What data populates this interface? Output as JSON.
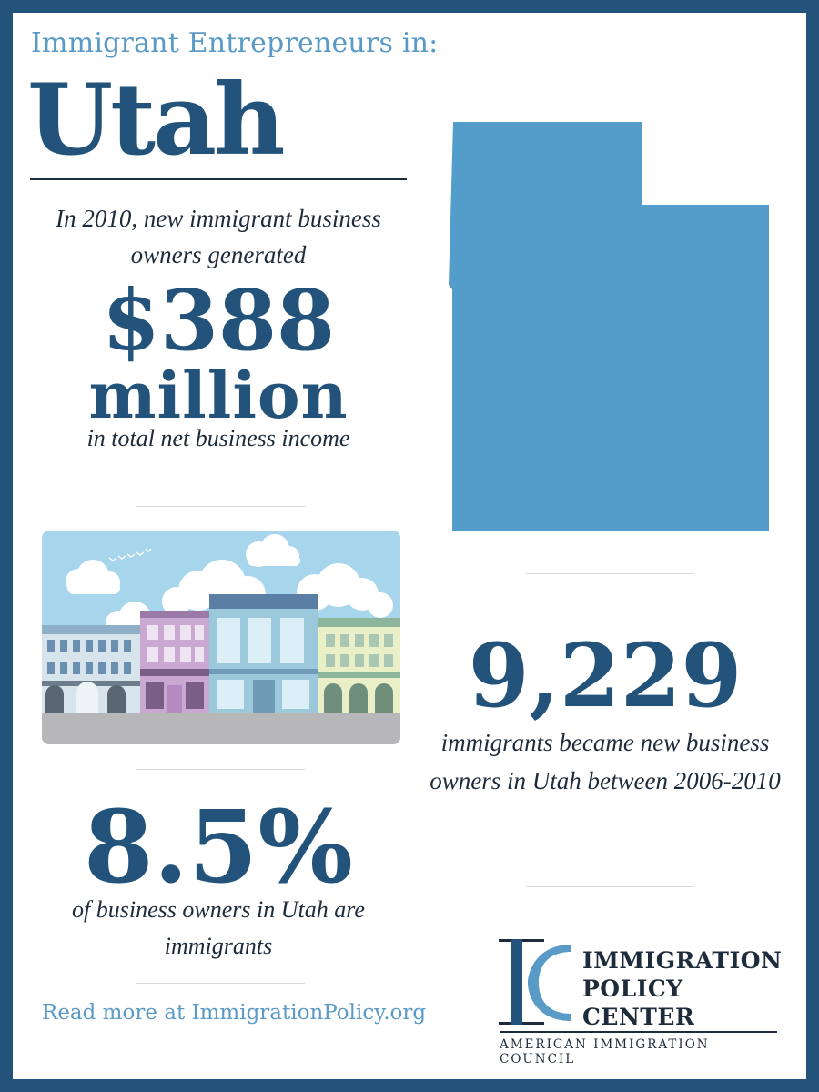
{
  "header": {
    "kicker": "Immigrant Entrepreneurs in:",
    "state": "Utah"
  },
  "income": {
    "intro": "In 2010, new immigrant business owners generated",
    "value": "$388",
    "unit": "million",
    "outro": "in total net business income"
  },
  "share": {
    "value": "8.5%",
    "label": "of business owners in Utah are immigrants"
  },
  "new_owners": {
    "value": "9,229",
    "label": "immigrants became new business owners in Utah between 2006-2010"
  },
  "footer": {
    "read_more": "Read more at ImmigrationPolicy.org"
  },
  "logo": {
    "name_line1": "IMMIGRATION",
    "name_line2": "POLICY",
    "name_line3": "CENTER",
    "subtitle": "AMERICAN IMMIGRATION COUNCIL"
  },
  "colors": {
    "frame": "#23537a",
    "accent": "#5a9ac6",
    "map_fill": "#549dcb",
    "text_dark": "#1d2b3a"
  },
  "icons": {
    "map": "utah-state-shape",
    "illustration": "storefront-street-illustration",
    "logo": "ipc-logo-mark"
  }
}
